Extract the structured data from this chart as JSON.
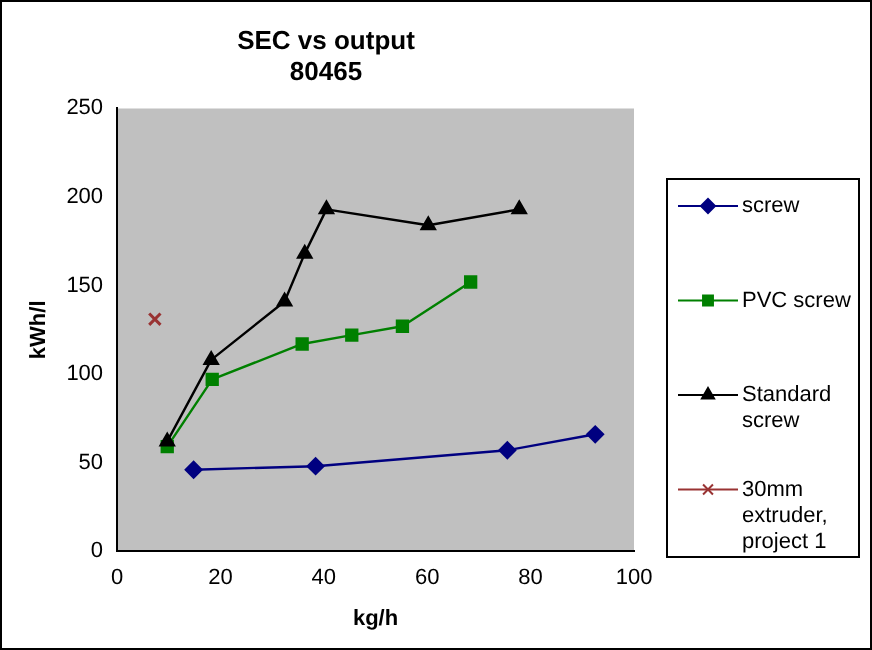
{
  "chart_data": {
    "type": "line",
    "title": "SEC vs output",
    "subtitle": "80465",
    "xlabel": "kg/h",
    "ylabel": "kWh/l",
    "xlim": [
      0,
      100
    ],
    "xticks": [
      0,
      20,
      40,
      60,
      80,
      100
    ],
    "ylim": [
      0,
      250
    ],
    "yticks": [
      0,
      50,
      100,
      150,
      200,
      250
    ],
    "grid": false,
    "legend": "right",
    "series": [
      {
        "name": "screw",
        "color": "#000080",
        "marker": "diamond",
        "x": [
          14.8,
          38.4,
          75.5,
          92.5
        ],
        "values": [
          46,
          48,
          57,
          66
        ]
      },
      {
        "name": "PVC screw",
        "color": "#008000",
        "marker": "square",
        "x": [
          9.7,
          18.4,
          35.8,
          45.4,
          55.2,
          68.4
        ],
        "values": [
          59,
          97,
          117,
          122,
          127,
          152
        ]
      },
      {
        "name": "Standard screw",
        "color": "#000000",
        "marker": "triangle",
        "x": [
          9.7,
          18.2,
          32.4,
          36.3,
          40.5,
          60.2,
          77.8
        ],
        "values": [
          62,
          108,
          141,
          168,
          193,
          184,
          193
        ]
      },
      {
        "name": "30mm extruder, project 1",
        "color": "#993333",
        "marker": "cross",
        "x": [
          7.3
        ],
        "values": [
          131
        ]
      }
    ]
  }
}
